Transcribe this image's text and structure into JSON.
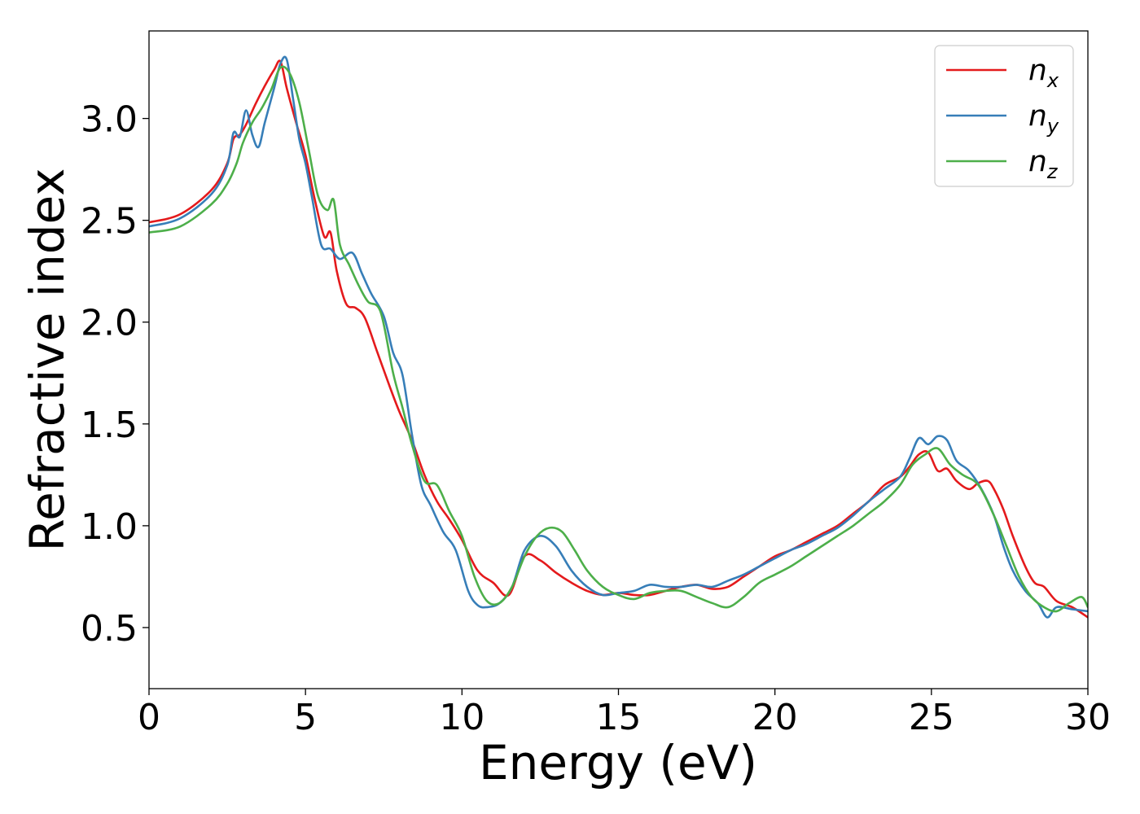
{
  "chart_data": {
    "type": "line",
    "xlabel": "Energy (eV)",
    "ylabel": "Refractive index",
    "xlim": [
      0,
      30
    ],
    "ylim": [
      0.2,
      3.43
    ],
    "xticks": [
      0,
      5,
      10,
      15,
      20,
      25,
      30
    ],
    "xtick_labels": [
      "0",
      "5",
      "10",
      "15",
      "20",
      "25",
      "30"
    ],
    "yticks": [
      0.5,
      1.0,
      1.5,
      2.0,
      2.5,
      3.0
    ],
    "ytick_labels": [
      "0.5",
      "1.0",
      "1.5",
      "2.0",
      "2.5",
      "3.0"
    ],
    "grid": false,
    "legend_position": "top-right",
    "series": [
      {
        "name": "n_x",
        "label_main": "n",
        "label_sub": "x",
        "color": "#e41a1c",
        "x": [
          0,
          1,
          2,
          2.5,
          2.7,
          2.9,
          3.1,
          3.4,
          3.7,
          4.0,
          4.2,
          4.4,
          4.7,
          5.0,
          5.3,
          5.6,
          5.8,
          6.0,
          6.3,
          6.6,
          6.9,
          7.3,
          7.7,
          8.0,
          8.4,
          8.8,
          9.2,
          9.6,
          10.0,
          10.5,
          11.0,
          11.5,
          12.0,
          12.5,
          13.0,
          13.5,
          14.0,
          14.5,
          15.0,
          15.5,
          16.0,
          16.5,
          17.0,
          17.5,
          18.0,
          18.5,
          19.0,
          19.5,
          20.0,
          20.5,
          21.0,
          21.5,
          22.0,
          22.5,
          23.0,
          23.5,
          24.0,
          24.3,
          24.6,
          24.9,
          25.2,
          25.5,
          25.8,
          26.2,
          26.5,
          26.8,
          27.0,
          27.3,
          27.6,
          28.0,
          28.3,
          28.6,
          29.0,
          29.5,
          30.0
        ],
        "y": [
          2.49,
          2.53,
          2.65,
          2.78,
          2.9,
          2.92,
          2.97,
          3.07,
          3.16,
          3.24,
          3.28,
          3.15,
          2.98,
          2.82,
          2.6,
          2.42,
          2.44,
          2.25,
          2.09,
          2.07,
          2.02,
          1.85,
          1.68,
          1.56,
          1.42,
          1.25,
          1.12,
          1.03,
          0.93,
          0.78,
          0.72,
          0.66,
          0.85,
          0.83,
          0.77,
          0.72,
          0.68,
          0.66,
          0.67,
          0.66,
          0.66,
          0.68,
          0.7,
          0.71,
          0.69,
          0.7,
          0.75,
          0.8,
          0.85,
          0.88,
          0.92,
          0.96,
          1.0,
          1.06,
          1.12,
          1.2,
          1.24,
          1.29,
          1.35,
          1.36,
          1.27,
          1.28,
          1.22,
          1.18,
          1.21,
          1.22,
          1.18,
          1.08,
          0.95,
          0.8,
          0.72,
          0.7,
          0.63,
          0.6,
          0.55
        ]
      },
      {
        "name": "n_y",
        "label_main": "n",
        "label_sub": "y",
        "color": "#377eb8",
        "x": [
          0,
          1,
          2,
          2.5,
          2.7,
          2.9,
          3.1,
          3.3,
          3.5,
          3.7,
          4.0,
          4.2,
          4.4,
          4.6,
          4.8,
          5.0,
          5.2,
          5.5,
          5.8,
          6.1,
          6.5,
          6.8,
          7.1,
          7.5,
          7.8,
          8.1,
          8.4,
          8.7,
          9.0,
          9.4,
          9.8,
          10.2,
          10.5,
          10.8,
          11.2,
          11.6,
          12.0,
          12.5,
          13.0,
          13.5,
          14.0,
          14.5,
          15.0,
          15.5,
          16.0,
          16.5,
          17.0,
          17.5,
          18.0,
          18.5,
          19.0,
          19.5,
          20.0,
          20.5,
          21.0,
          21.5,
          22.0,
          22.5,
          23.0,
          23.5,
          24.0,
          24.3,
          24.6,
          24.9,
          25.2,
          25.5,
          25.8,
          26.2,
          26.6,
          27.0,
          27.3,
          27.6,
          28.0,
          28.4,
          28.7,
          29.0,
          29.5,
          30.0
        ],
        "y": [
          2.47,
          2.51,
          2.63,
          2.77,
          2.93,
          2.91,
          3.04,
          2.92,
          2.86,
          2.98,
          3.15,
          3.27,
          3.29,
          3.1,
          2.9,
          2.78,
          2.62,
          2.38,
          2.36,
          2.31,
          2.34,
          2.24,
          2.14,
          2.03,
          1.85,
          1.74,
          1.45,
          1.2,
          1.1,
          0.97,
          0.88,
          0.68,
          0.61,
          0.6,
          0.62,
          0.7,
          0.88,
          0.95,
          0.9,
          0.78,
          0.7,
          0.66,
          0.67,
          0.68,
          0.71,
          0.7,
          0.7,
          0.71,
          0.7,
          0.73,
          0.76,
          0.8,
          0.84,
          0.88,
          0.91,
          0.95,
          0.99,
          1.05,
          1.12,
          1.18,
          1.24,
          1.33,
          1.43,
          1.4,
          1.44,
          1.42,
          1.32,
          1.27,
          1.18,
          1.05,
          0.9,
          0.78,
          0.68,
          0.62,
          0.55,
          0.6,
          0.59,
          0.58
        ]
      },
      {
        "name": "n_z",
        "label_main": "n",
        "label_sub": "z",
        "color": "#4daf4a",
        "x": [
          0,
          1,
          2,
          2.5,
          2.8,
          3.0,
          3.3,
          3.6,
          3.9,
          4.2,
          4.5,
          4.8,
          5.1,
          5.4,
          5.7,
          5.9,
          6.1,
          6.4,
          6.7,
          7.0,
          7.4,
          7.8,
          8.1,
          8.4,
          8.8,
          9.2,
          9.6,
          10.0,
          10.4,
          10.8,
          11.2,
          11.6,
          12.0,
          12.4,
          12.8,
          13.2,
          13.6,
          14.0,
          14.5,
          15.0,
          15.5,
          16.0,
          16.5,
          17.0,
          17.5,
          18.0,
          18.5,
          19.0,
          19.5,
          20.0,
          20.5,
          21.0,
          21.5,
          22.0,
          22.5,
          23.0,
          23.5,
          24.0,
          24.4,
          24.8,
          25.2,
          25.6,
          26.0,
          26.5,
          27.0,
          27.4,
          27.8,
          28.2,
          28.6,
          29.0,
          29.4,
          29.8,
          30.0
        ],
        "y": [
          2.44,
          2.47,
          2.58,
          2.68,
          2.78,
          2.88,
          2.98,
          3.05,
          3.14,
          3.25,
          3.22,
          3.08,
          2.85,
          2.62,
          2.55,
          2.6,
          2.38,
          2.28,
          2.18,
          2.1,
          2.05,
          1.75,
          1.58,
          1.4,
          1.22,
          1.2,
          1.07,
          0.95,
          0.75,
          0.63,
          0.62,
          0.7,
          0.85,
          0.95,
          0.99,
          0.97,
          0.88,
          0.78,
          0.7,
          0.66,
          0.64,
          0.67,
          0.68,
          0.68,
          0.65,
          0.62,
          0.6,
          0.65,
          0.72,
          0.76,
          0.8,
          0.85,
          0.9,
          0.95,
          1.0,
          1.06,
          1.12,
          1.2,
          1.3,
          1.35,
          1.38,
          1.3,
          1.25,
          1.2,
          1.05,
          0.9,
          0.75,
          0.65,
          0.6,
          0.58,
          0.62,
          0.65,
          0.6
        ]
      }
    ]
  }
}
